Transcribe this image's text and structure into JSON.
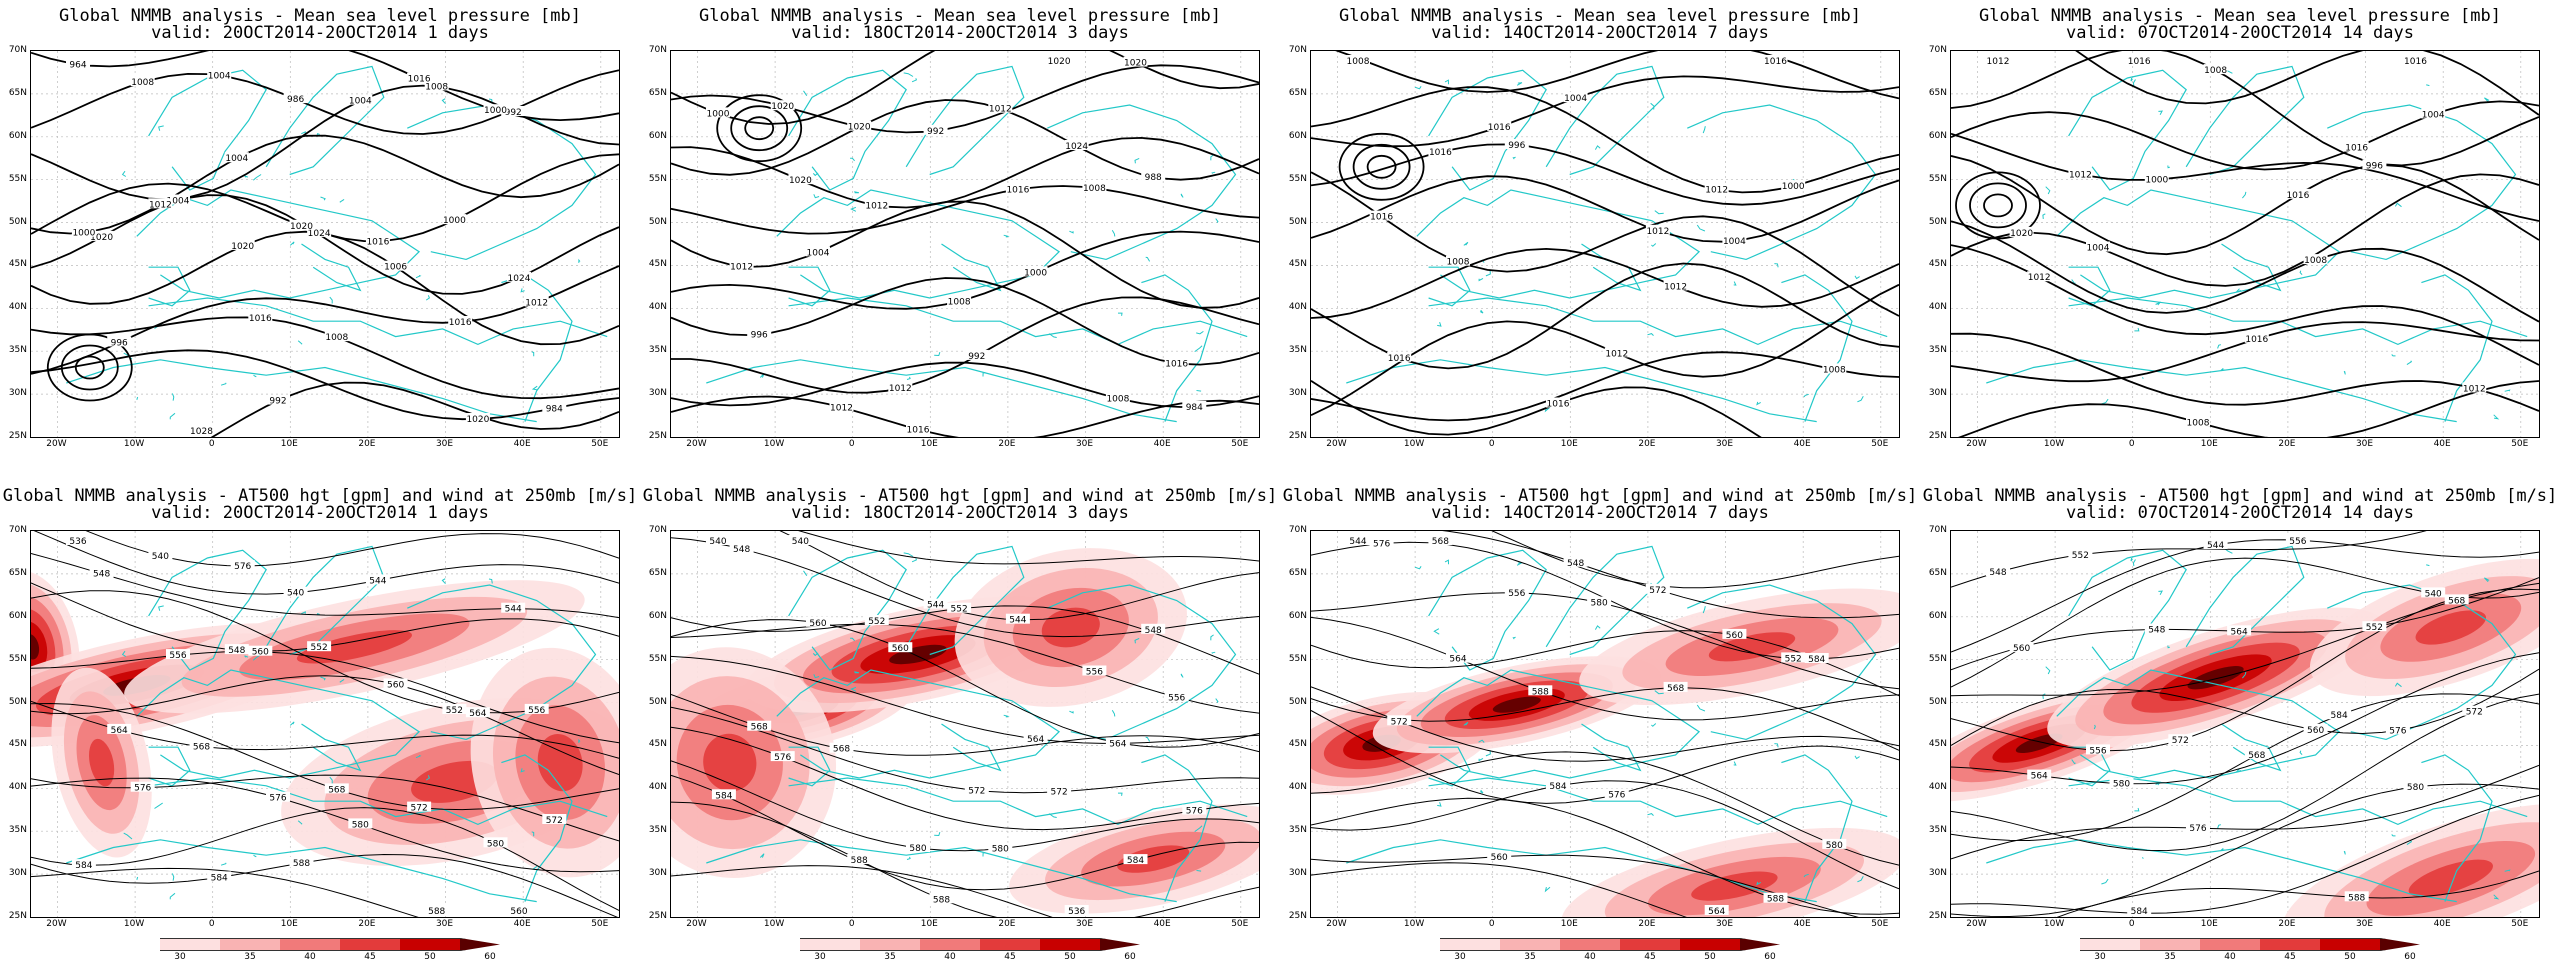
{
  "colors": {
    "coast": "#22c8c8",
    "contour": "#000000",
    "grid": "#bbbbbb",
    "wind": [
      "#ffffff",
      "#fde0e0",
      "#f9b3b3",
      "#f17a7a",
      "#e33b3b",
      "#c80000",
      "#5a0000"
    ]
  },
  "lat_labels": [
    "70N",
    "65N",
    "60N",
    "55N",
    "50N",
    "45N",
    "40N",
    "35N",
    "30N",
    "25N"
  ],
  "lon_labels": [
    "20W",
    "10W",
    "0",
    "10E",
    "20E",
    "30E",
    "40E",
    "50E"
  ],
  "colorbar_ticks": [
    "30",
    "35",
    "40",
    "45",
    "50",
    "60"
  ],
  "mslp_panels": [
    {
      "title": "Global NMMB analysis - Mean sea level pressure [mb]",
      "valid": "valid: 20OCT2014-20OCT2014   1 days",
      "labels": [
        "964",
        "986",
        "992",
        "1004",
        "1000",
        "1004",
        "1006",
        "996",
        "1008",
        "984",
        "992",
        "1000",
        "1004",
        "1008",
        "1012",
        "1016",
        "1020",
        "1024",
        "1012",
        "1016",
        "1020",
        "1028",
        "1016",
        "1008",
        "1004",
        "1000",
        "1020",
        "1024",
        "1020",
        "1016"
      ]
    },
    {
      "title": "Global NMMB analysis - Mean sea level pressure [mb]",
      "valid": "valid: 18OCT2014-20OCT2014   3 days",
      "labels": [
        "1000",
        "992",
        "988",
        "1012",
        "1008",
        "1004",
        "1000",
        "996",
        "992",
        "984",
        "1016",
        "1020",
        "1020",
        "1024",
        "1020",
        "1016",
        "1012",
        "1008",
        "1016",
        "1012",
        "1008",
        "1012",
        "1020",
        "1020",
        "1012"
      ]
    },
    {
      "title": "Global NMMB analysis - Mean sea level pressure [mb]",
      "valid": "valid: 14OCT2014-20OCT2014   7 days",
      "labels": [
        "1008",
        "1004",
        "1000",
        "996",
        "1004",
        "1008",
        "1012",
        "1016",
        "1012",
        "1008",
        "1016",
        "1016",
        "1016",
        "1012",
        "1016",
        "1012",
        "1016"
      ]
    },
    {
      "title": "Global NMMB analysis - Mean sea level pressure [mb]",
      "valid": "valid: 07OCT2014-20OCT2014   14 days",
      "labels": [
        "1012",
        "1008",
        "1004",
        "1000",
        "996",
        "1004",
        "1008",
        "1012",
        "1016",
        "1012",
        "1008",
        "1016",
        "1016",
        "1016",
        "1012",
        "1016",
        "1020"
      ]
    }
  ],
  "z500_panels": [
    {
      "title": "Global NMMB analysis - AT500 hgt [gpm] and wind at 250mb [m/s]",
      "valid": "valid: 20OCT2014-20OCT2014   1 days",
      "labels": [
        "536",
        "540",
        "544",
        "548",
        "552",
        "556",
        "560",
        "564",
        "568",
        "572",
        "576",
        "580",
        "584",
        "588",
        "540",
        "544",
        "548",
        "552",
        "556",
        "560",
        "564",
        "568",
        "572",
        "576",
        "580",
        "584",
        "588",
        "560",
        "576"
      ]
    },
    {
      "title": "Global NMMB analysis - AT500 hgt [gpm] and wind at 250mb [m/s]",
      "valid": "valid: 18OCT2014-20OCT2014   3 days",
      "labels": [
        "540",
        "544",
        "548",
        "552",
        "556",
        "560",
        "564",
        "568",
        "572",
        "576",
        "580",
        "584",
        "588",
        "536",
        "540",
        "544",
        "548",
        "552",
        "556",
        "560",
        "564",
        "568",
        "572",
        "576",
        "580",
        "584",
        "588"
      ]
    },
    {
      "title": "Global NMMB analysis - AT500 hgt [gpm] and wind at 250mb [m/s]",
      "valid": "valid: 14OCT2014-20OCT2014   7 days",
      "labels": [
        "544",
        "548",
        "552",
        "556",
        "560",
        "564",
        "568",
        "572",
        "576",
        "580",
        "584",
        "588",
        "560",
        "564",
        "568",
        "572",
        "576",
        "580",
        "584",
        "588"
      ]
    },
    {
      "title": "Global NMMB analysis - AT500 hgt [gpm] and wind at 250mb [m/s]",
      "valid": "valid: 07OCT2014-20OCT2014   14 days",
      "labels": [
        "548",
        "544",
        "540",
        "548",
        "552",
        "556",
        "560",
        "564",
        "568",
        "572",
        "576",
        "580",
        "584",
        "588",
        "552",
        "556",
        "560",
        "564",
        "568",
        "572",
        "576",
        "580",
        "584"
      ]
    }
  ]
}
